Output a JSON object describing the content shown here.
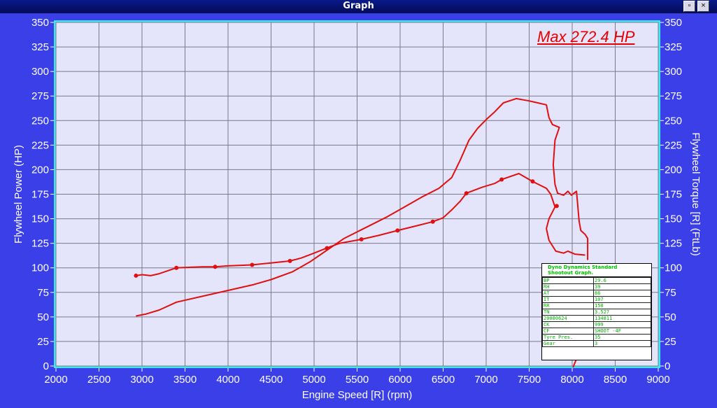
{
  "window": {
    "title": "Graph",
    "restore_glyph": "▫",
    "close_glyph": "×"
  },
  "chart_data": {
    "type": "line",
    "title": "",
    "xlabel": "Engine Speed [R] (rpm)",
    "ylabel": "Flywheel Power (HP)",
    "ylabel_right": "Flywheel Torque [R] (FtLb)",
    "xlim": [
      2000,
      9000
    ],
    "ylim": [
      0,
      350
    ],
    "x_ticks": [
      2000,
      2500,
      3000,
      3500,
      4000,
      4500,
      5000,
      5500,
      6000,
      6500,
      7000,
      7500,
      8000,
      8500,
      9000
    ],
    "y_ticks": [
      0,
      25,
      50,
      75,
      100,
      125,
      150,
      175,
      200,
      225,
      250,
      275,
      300,
      325,
      350
    ],
    "grid": true,
    "annotation": "Max 272.4 HP",
    "colors": {
      "series": "#e01010",
      "plot_bg": "#e4e4fa",
      "plot_border": "#3ee8f0",
      "frame_bg": "#3a3fe8"
    },
    "series": [
      {
        "name": "",
        "points": [
          [
            2930,
            51
          ],
          [
            3050,
            53
          ],
          [
            3200,
            57
          ],
          [
            3400,
            65
          ],
          [
            3700,
            71
          ],
          [
            4000,
            77
          ],
          [
            4300,
            83
          ],
          [
            4500,
            88
          ],
          [
            4750,
            96
          ],
          [
            4950,
            106
          ],
          [
            5150,
            118
          ],
          [
            5350,
            130
          ],
          [
            5600,
            141
          ],
          [
            5850,
            152
          ],
          [
            6050,
            162
          ],
          [
            6250,
            172
          ],
          [
            6450,
            181
          ],
          [
            6600,
            192
          ],
          [
            6700,
            210
          ],
          [
            6800,
            230
          ],
          [
            6900,
            242
          ],
          [
            7000,
            251
          ],
          [
            7100,
            259
          ],
          [
            7200,
            268
          ],
          [
            7350,
            272.4
          ],
          [
            7500,
            270
          ],
          [
            7700,
            266
          ],
          [
            7730,
            253
          ],
          [
            7770,
            246
          ],
          [
            7850,
            243
          ],
          [
            7800,
            230
          ],
          [
            7780,
            205
          ],
          [
            7800,
            185
          ],
          [
            7830,
            176
          ],
          [
            7900,
            174
          ],
          [
            7950,
            178
          ],
          [
            7990,
            174
          ],
          [
            8050,
            178
          ],
          [
            8060,
            168
          ],
          [
            8080,
            148
          ],
          [
            8100,
            138
          ],
          [
            8150,
            134
          ],
          [
            8180,
            130
          ],
          [
            8180,
            108
          ]
        ]
      },
      {
        "name": "",
        "points": [
          [
            2930,
            92
          ],
          [
            3000,
            93
          ],
          [
            3100,
            92
          ],
          [
            3200,
            94
          ],
          [
            3400,
            100
          ],
          [
            3700,
            101
          ],
          [
            3850,
            101
          ],
          [
            4000,
            102
          ],
          [
            4280,
            103
          ],
          [
            4500,
            105
          ],
          [
            4720,
            107
          ],
          [
            4850,
            110
          ],
          [
            5000,
            115
          ],
          [
            5170,
            121
          ],
          [
            5300,
            125
          ],
          [
            5550,
            129
          ],
          [
            5750,
            133
          ],
          [
            5970,
            138
          ],
          [
            6200,
            143
          ],
          [
            6380,
            147
          ],
          [
            6500,
            151
          ],
          [
            6600,
            159
          ],
          [
            6700,
            168
          ],
          [
            6770,
            176
          ],
          [
            6950,
            182
          ],
          [
            7100,
            186
          ],
          [
            7180,
            190
          ],
          [
            7380,
            196
          ],
          [
            7500,
            190
          ],
          [
            7540,
            188
          ],
          [
            7700,
            181
          ],
          [
            7750,
            175
          ],
          [
            7800,
            162
          ],
          [
            7730,
            150
          ],
          [
            7700,
            140
          ],
          [
            7730,
            128
          ],
          [
            7810,
            117
          ],
          [
            7900,
            115
          ],
          [
            7950,
            117
          ],
          [
            8030,
            114
          ],
          [
            8150,
            113
          ]
        ]
      }
    ],
    "markers": [
      [
        2930,
        92
      ],
      [
        3400,
        100
      ],
      [
        3850,
        101
      ],
      [
        4280,
        103
      ],
      [
        4720,
        107
      ],
      [
        5150,
        120
      ],
      [
        5550,
        129
      ],
      [
        5970,
        138
      ],
      [
        6380,
        147
      ],
      [
        6770,
        176
      ],
      [
        7180,
        190
      ],
      [
        7540,
        188
      ],
      [
        7820,
        163
      ]
    ],
    "rpm_indicator": {
      "x": 8050,
      "y": 3
    }
  },
  "info_box": {
    "header_line1": "Dyno Dynamics Standard",
    "header_line2": "Shootout Graph.",
    "rows": [
      {
        "key": "BP",
        "value": "29.6"
      },
      {
        "key": "RH",
        "value": "39"
      },
      {
        "key": "AT",
        "value": "86"
      },
      {
        "key": "IT",
        "value": "107"
      },
      {
        "key": "RR",
        "value": "150"
      },
      {
        "key": "TN",
        "value": "3.527"
      },
      {
        "key": "20080624",
        "value": "134811"
      },
      {
        "key": "CK",
        "value": "999"
      },
      {
        "key": "CF",
        "value": "SHOOT -4F"
      },
      {
        "key": "Tyre Pres.",
        "value": "35"
      },
      {
        "key": "Gear",
        "value": "3"
      }
    ]
  }
}
